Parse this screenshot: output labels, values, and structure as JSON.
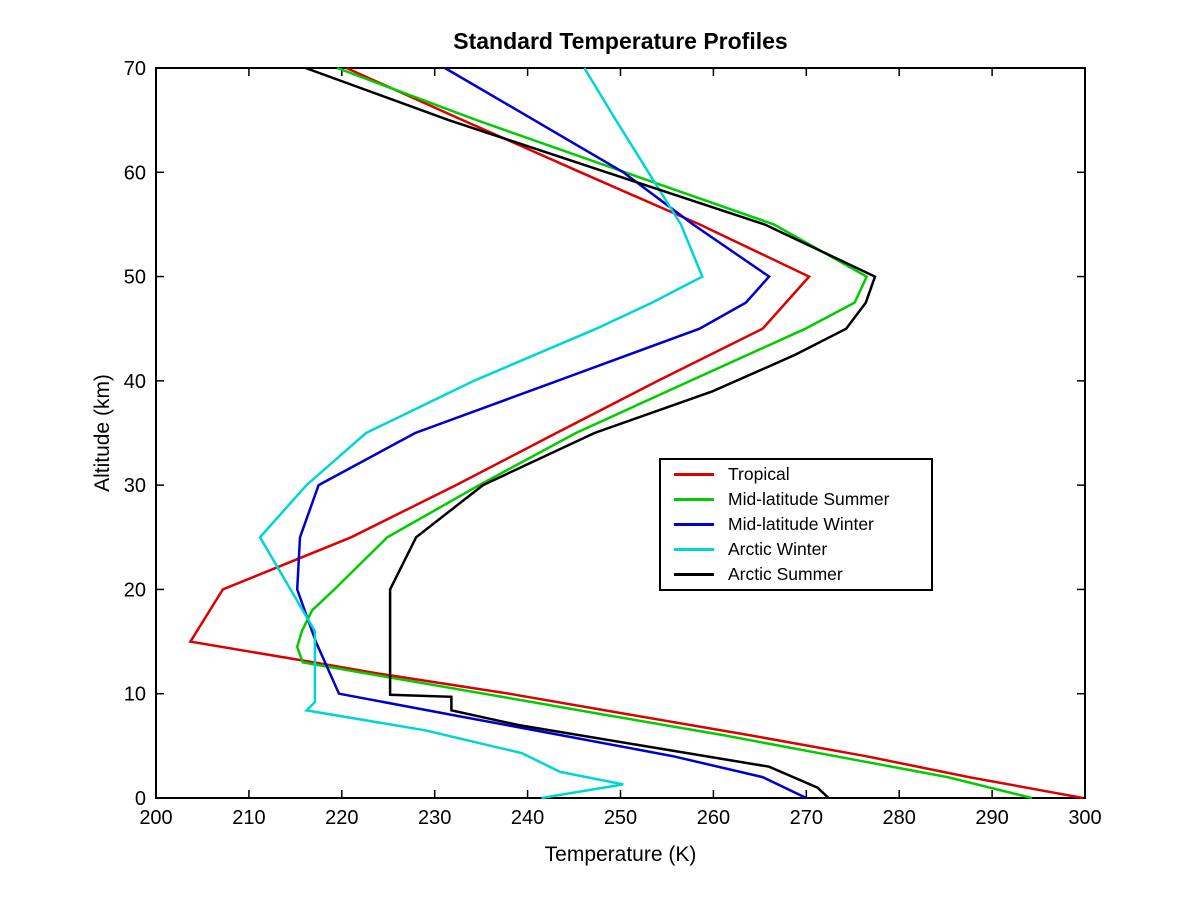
{
  "figure": {
    "title": "Standard Temperature Profiles",
    "xlabel": "Temperature (K)",
    "ylabel": "Altitude (km)"
  },
  "chart_data": {
    "type": "line",
    "title": "Standard Temperature Profiles",
    "xlabel": "Temperature (K)",
    "ylabel": "Altitude (km)",
    "xlim": [
      200,
      300
    ],
    "ylim": [
      0,
      70
    ],
    "xticks": [
      200,
      210,
      220,
      230,
      240,
      250,
      260,
      270,
      280,
      290,
      300
    ],
    "yticks": [
      0,
      10,
      20,
      30,
      40,
      50,
      60,
      70
    ],
    "grid": false,
    "axis_color": "#000000",
    "background_color": "#ffffff",
    "legend_position": "center-right",
    "legend_labels": [
      "Tropical",
      "Mid-latitude Summer",
      "Mid-latitude Winter",
      "Arctic Winter",
      "Arctic Summer"
    ],
    "series": [
      {
        "name": "Tropical",
        "color": "#dd0000",
        "points": [
          [
            299.8,
            0
          ],
          [
            287.5,
            2
          ],
          [
            276.5,
            4
          ],
          [
            264.0,
            6
          ],
          [
            251.0,
            8
          ],
          [
            238.0,
            10
          ],
          [
            223.5,
            12
          ],
          [
            217.0,
            13
          ],
          [
            203.7,
            15
          ],
          [
            207.2,
            20
          ],
          [
            221.0,
            25
          ],
          [
            232.3,
            30
          ],
          [
            243.1,
            35
          ],
          [
            254.0,
            40
          ],
          [
            265.3,
            45
          ],
          [
            270.3,
            50
          ],
          [
            258.5,
            55
          ],
          [
            245.7,
            60
          ],
          [
            233.0,
            65
          ],
          [
            220.5,
            70
          ]
        ]
      },
      {
        "name": "Mid-latitude Summer",
        "color": "#00cc00",
        "points": [
          [
            294.3,
            0
          ],
          [
            285.2,
            2
          ],
          [
            273.2,
            4
          ],
          [
            261.2,
            6
          ],
          [
            248.2,
            8
          ],
          [
            235.3,
            10
          ],
          [
            222.3,
            12
          ],
          [
            215.8,
            13
          ],
          [
            215.2,
            14.5
          ],
          [
            215.7,
            16
          ],
          [
            216.8,
            18
          ],
          [
            219.2,
            20
          ],
          [
            224.9,
            25
          ],
          [
            234.8,
            30
          ],
          [
            245.2,
            35
          ],
          [
            257.5,
            40
          ],
          [
            269.9,
            45
          ],
          [
            275.2,
            47.5
          ],
          [
            276.5,
            50
          ],
          [
            266.5,
            55
          ],
          [
            250.5,
            60
          ],
          [
            234.5,
            65
          ],
          [
            219.5,
            70
          ]
        ]
      },
      {
        "name": "Mid-latitude Winter",
        "color": "#0000cc",
        "points": [
          [
            270.0,
            0
          ],
          [
            265.3,
            2
          ],
          [
            255.7,
            4
          ],
          [
            243.7,
            6
          ],
          [
            231.7,
            8
          ],
          [
            219.7,
            10
          ],
          [
            217.2,
            15
          ],
          [
            215.2,
            20
          ],
          [
            215.5,
            25
          ],
          [
            217.5,
            30
          ],
          [
            227.9,
            35
          ],
          [
            243.2,
            40
          ],
          [
            258.5,
            45
          ],
          [
            263.5,
            47.5
          ],
          [
            266.0,
            50
          ],
          [
            257.8,
            55
          ],
          [
            250.3,
            60
          ],
          [
            240.7,
            65
          ],
          [
            231.1,
            70
          ]
        ]
      },
      {
        "name": "Arctic Winter",
        "color": "#00d5d5",
        "points": [
          [
            241.5,
            0
          ],
          [
            250.3,
            1.3
          ],
          [
            243.5,
            2.5
          ],
          [
            239.4,
            4.3
          ],
          [
            228.9,
            6.5
          ],
          [
            216.2,
            8.4
          ],
          [
            217.1,
            9.2
          ],
          [
            217.1,
            16
          ],
          [
            211.2,
            25
          ],
          [
            216.2,
            30
          ],
          [
            222.6,
            35
          ],
          [
            234.2,
            40
          ],
          [
            247.4,
            45
          ],
          [
            253.4,
            47.5
          ],
          [
            258.8,
            50
          ],
          [
            256.5,
            55
          ],
          [
            253.0,
            60
          ],
          [
            249.5,
            65
          ],
          [
            246.1,
            70
          ]
        ]
      },
      {
        "name": "Arctic Summer",
        "color": "#000000",
        "points": [
          [
            272.4,
            0
          ],
          [
            271.2,
            1
          ],
          [
            266.0,
            3
          ],
          [
            252.5,
            5
          ],
          [
            239.0,
            7
          ],
          [
            231.8,
            8.4
          ],
          [
            231.8,
            9.7
          ],
          [
            225.2,
            9.9
          ],
          [
            225.2,
            20
          ],
          [
            228.0,
            25
          ],
          [
            235.2,
            30
          ],
          [
            247.2,
            35
          ],
          [
            259.9,
            39
          ],
          [
            268.8,
            42.5
          ],
          [
            274.3,
            45
          ],
          [
            276.4,
            47.5
          ],
          [
            277.4,
            50
          ],
          [
            265.5,
            55
          ],
          [
            248.5,
            60
          ],
          [
            231.5,
            65
          ],
          [
            216.1,
            70
          ]
        ]
      }
    ]
  }
}
